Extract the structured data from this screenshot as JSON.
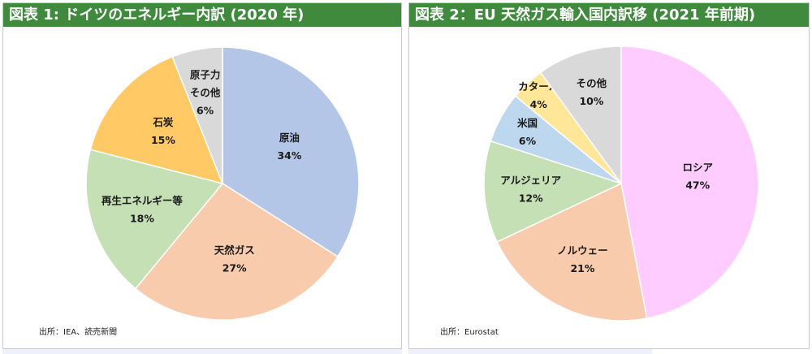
{
  "charts": [
    {
      "id": "chart1",
      "title": "図表 1: ドイツのエネルギー内訳 (2020 年)",
      "source": "出所：IEA、読売新聞"
    },
    {
      "id": "chart2",
      "title": "図表 2：EU 天然ガス輸入国内訳移 (2021 年前期)",
      "source": "出所：Eurostat"
    }
  ],
  "chart_data": [
    {
      "type": "pie",
      "title": "図表 1: ドイツのエネルギー内訳 (2020 年)",
      "start": "12 o'clock, clockwise",
      "slices": [
        {
          "label": "原油",
          "value": 34,
          "value_label": "34%",
          "color": "#b4c6e7"
        },
        {
          "label": "天然ガス",
          "value": 27,
          "value_label": "27%",
          "color": "#f8cbad"
        },
        {
          "label": "再生エネルギー等",
          "value": 18,
          "value_label": "18%",
          "color": "#c5e0b4"
        },
        {
          "label": "石炭",
          "value": 15,
          "value_label": "15%",
          "color": "#ffc966"
        },
        {
          "label": "原子力\nその他",
          "value": 6,
          "value_label": "6%",
          "color": "#d9d9d9"
        }
      ]
    },
    {
      "type": "pie",
      "title": "図表 2：EU 天然ガス輸入国内訳移 (2021 年前期)",
      "start": "12 o'clock, clockwise",
      "slices": [
        {
          "label": "ロシア",
          "value": 47,
          "value_label": "47%",
          "color": "#ffccff"
        },
        {
          "label": "ノルウェー",
          "value": 21,
          "value_label": "21%",
          "color": "#f8cbad"
        },
        {
          "label": "アルジェリア",
          "value": 12,
          "value_label": "12%",
          "color": "#c5e0b4"
        },
        {
          "label": "米国",
          "value": 6,
          "value_label": "6%",
          "color": "#bdd7ee"
        },
        {
          "label": "カタール",
          "value": 4,
          "value_label": "4%",
          "color": "#ffe699"
        },
        {
          "label": "その他",
          "value": 10,
          "value_label": "10%",
          "color": "#d9d9d9"
        }
      ]
    }
  ]
}
